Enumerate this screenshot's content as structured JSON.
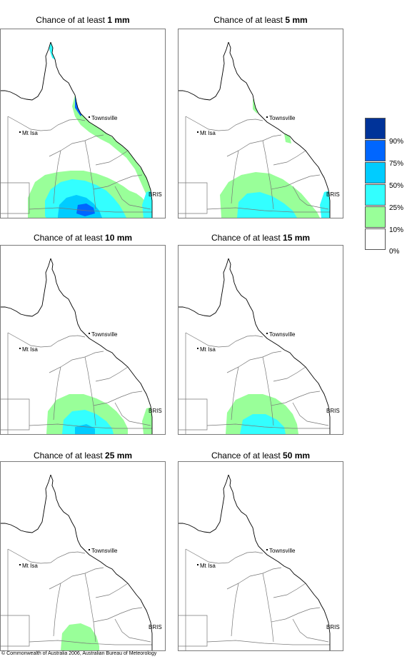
{
  "panels": [
    {
      "prefix": "Chance of at least ",
      "amount": "1 mm",
      "zones": [
        {
          "level": 1,
          "shape": "south-plume-large"
        },
        {
          "level": 2,
          "shape": "south-core-large"
        },
        {
          "level": 3,
          "shape": "south-inner-large"
        },
        {
          "level": 4,
          "shape": "south-spot"
        },
        {
          "level": 1,
          "shape": "coast-strip"
        },
        {
          "level": 2,
          "shape": "coast-north"
        },
        {
          "level": 4,
          "shape": "coast-cairns"
        },
        {
          "level": 2,
          "shape": "brisbane-edge"
        }
      ]
    },
    {
      "prefix": "Chance of at least ",
      "amount": "5 mm",
      "zones": [
        {
          "level": 1,
          "shape": "south-plume-medium"
        },
        {
          "level": 2,
          "shape": "south-core-medium"
        },
        {
          "level": 1,
          "shape": "coast-patches"
        },
        {
          "level": 2,
          "shape": "brisbane-edge"
        }
      ]
    },
    {
      "prefix": "Chance of at least ",
      "amount": "10 mm",
      "zones": [
        {
          "level": 1,
          "shape": "south-plume-small"
        },
        {
          "level": 2,
          "shape": "south-core-small"
        },
        {
          "level": 3,
          "shape": "south-spot-small"
        },
        {
          "level": 1,
          "shape": "coast-cairns-small"
        },
        {
          "level": 1,
          "shape": "brisbane-edge"
        }
      ]
    },
    {
      "prefix": "Chance of at least ",
      "amount": "15 mm",
      "zones": [
        {
          "level": 1,
          "shape": "south-plume-15"
        },
        {
          "level": 2,
          "shape": "south-core-15"
        },
        {
          "level": 1,
          "shape": "townsville-dot"
        }
      ]
    },
    {
      "prefix": "Chance of at least ",
      "amount": "25 mm",
      "zones": [
        {
          "level": 1,
          "shape": "south-plume-25"
        }
      ]
    },
    {
      "prefix": "Chance of at least ",
      "amount": "50 mm",
      "zones": []
    }
  ],
  "places": {
    "townsville": "Townsville",
    "mt_isa": "Mt Isa",
    "brisbane": "BRIS"
  },
  "legend": {
    "colors": [
      "#ffffff",
      "#99ff99",
      "#33ffff",
      "#00ccff",
      "#0066ff",
      "#003399"
    ],
    "labels": [
      "0%",
      "10%",
      "25%",
      "50%",
      "75%",
      "90%"
    ]
  },
  "colors": {
    "border": "#7a7a7a",
    "coast": "#000000",
    "state_lines": "#777777"
  },
  "copyright": "© Commonwealth of Australia 2006, Australian Bureau of Meteorology"
}
